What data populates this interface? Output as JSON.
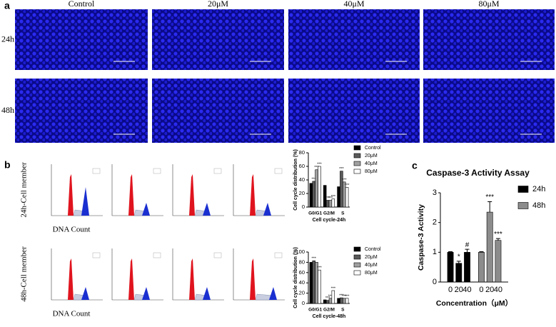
{
  "panel_labels": [
    "a",
    "b",
    "c"
  ],
  "microscopy": {
    "columns": [
      "Control",
      "20μM",
      "40μM",
      "80μM"
    ],
    "rows": [
      "24h",
      "48h"
    ]
  },
  "flow": {
    "rows": [
      "24h-Cell member",
      "48h-Cell member"
    ],
    "x_label": "DNA Count"
  },
  "chart_data": [
    {
      "type": "grouped_bar",
      "y_label": "Cell cycle distribution (%)",
      "x_label": "Cell cycle-24h",
      "categories": [
        "G0/G1",
        "G2/M",
        "S"
      ],
      "series": [
        {
          "name": "Control",
          "color": "#000000",
          "values": [
            35,
            32,
            30
          ],
          "significance": [
            null,
            null,
            null
          ]
        },
        {
          "name": "20μM",
          "color": "#5a5a5a",
          "values": [
            38,
            10,
            53
          ],
          "significance": [
            "***",
            "***",
            "***"
          ]
        },
        {
          "name": "40μM",
          "color": "#a0a0a0",
          "values": [
            55,
            10,
            37
          ],
          "significance": [
            "***",
            "***",
            "***"
          ]
        },
        {
          "name": "80μM",
          "color": "#ffffff",
          "values": [
            60,
            12,
            29
          ],
          "significance": [
            "***",
            "***",
            "***"
          ]
        }
      ],
      "ylim": [
        0,
        80
      ],
      "yticks": [
        0,
        20,
        40,
        60,
        80
      ]
    },
    {
      "type": "grouped_bar",
      "y_label": "Cell cycle distribution (%)",
      "x_label": "Cell cycle-48h",
      "categories": [
        "G0/G1",
        "G2/M",
        "S"
      ],
      "series": [
        {
          "name": "Control",
          "color": "#000000",
          "values": [
            80,
            7,
            10
          ],
          "significance": [
            null,
            null,
            null
          ]
        },
        {
          "name": "20μM",
          "color": "#5a5a5a",
          "values": [
            83,
            6,
            11
          ],
          "significance": [
            "***",
            "***",
            "***"
          ]
        },
        {
          "name": "40μM",
          "color": "#a0a0a0",
          "values": [
            80,
            10,
            10
          ],
          "significance": [
            null,
            "***",
            "***"
          ]
        },
        {
          "name": "80μM",
          "color": "#ffffff",
          "values": [
            65,
            25,
            10
          ],
          "significance": [
            "***",
            "***",
            "***"
          ]
        }
      ],
      "ylim": [
        0,
        100
      ],
      "yticks": [
        0,
        20,
        40,
        60,
        80,
        100
      ]
    },
    {
      "type": "bar",
      "title": "Caspase-3 Activity Assay",
      "y_label": "Caspase-3 Activity",
      "x_label": "Concentration（μM）",
      "categories": [
        "0",
        "20",
        "40"
      ],
      "series": [
        {
          "name": "24h",
          "color": "#000000",
          "values": [
            1.0,
            0.63,
            1.0
          ],
          "errors": [
            0.02,
            0.07,
            0.1
          ],
          "significance": [
            null,
            "*",
            "#"
          ]
        },
        {
          "name": "48h",
          "color": "#8c8c8c",
          "values": [
            1.0,
            2.35,
            1.4
          ],
          "errors": [
            0.02,
            0.35,
            0.06
          ],
          "significance": [
            null,
            "***",
            "***"
          ]
        }
      ],
      "ylim": [
        0,
        3
      ],
      "yticks": [
        0,
        1,
        2,
        3
      ]
    }
  ]
}
